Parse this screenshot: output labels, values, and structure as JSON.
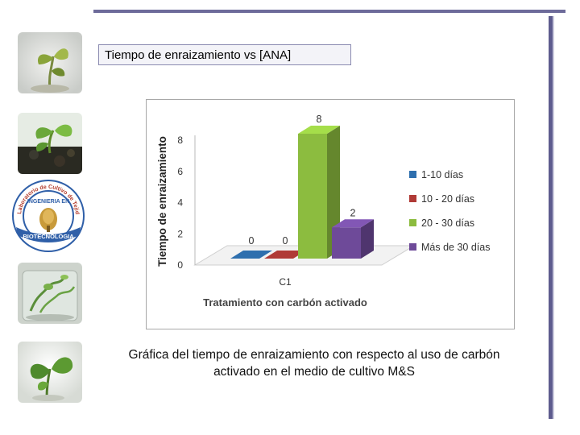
{
  "title": "Tiempo de enraizamiento vs [ANA]",
  "caption": "Gráfica del tiempo de enraizamiento con respecto al uso de carbón activado en el medio de cultivo M&S",
  "logo": {
    "arc_top": "Laboratorio de Cultivo de Tejidos",
    "center_label": "INGENIERIA EN",
    "banner": "BIOTECNOLOGIA",
    "icon": "seal-logo-icon"
  },
  "thumbnails": [
    {
      "icon": "plant-photo-icon"
    },
    {
      "icon": "plant-photo-icon"
    },
    {
      "icon": "plant-photo-icon"
    },
    {
      "icon": "plant-photo-icon"
    }
  ],
  "chart_data": {
    "type": "bar",
    "ylabel": "Tiempo de enraizamiento",
    "xlabel": "Tratamiento con carbón activado",
    "categories": [
      "C1"
    ],
    "ylim": [
      0,
      8
    ],
    "yticks": [
      "0",
      "2",
      "4",
      "6",
      "8"
    ],
    "legend_position": "right",
    "grid": false,
    "three_d": true,
    "series": [
      {
        "name": "1-10 días",
        "values": [
          0
        ],
        "label": "0",
        "color": "#2e6fae"
      },
      {
        "name": "10 - 20 días",
        "values": [
          0
        ],
        "label": "0",
        "color": "#b03a36"
      },
      {
        "name": "20 - 30 días",
        "values": [
          8
        ],
        "label": "8",
        "color": "#8cbc3f"
      },
      {
        "name": "Más de 30 días",
        "values": [
          2
        ],
        "label": "2",
        "color": "#6e4a99"
      }
    ]
  }
}
